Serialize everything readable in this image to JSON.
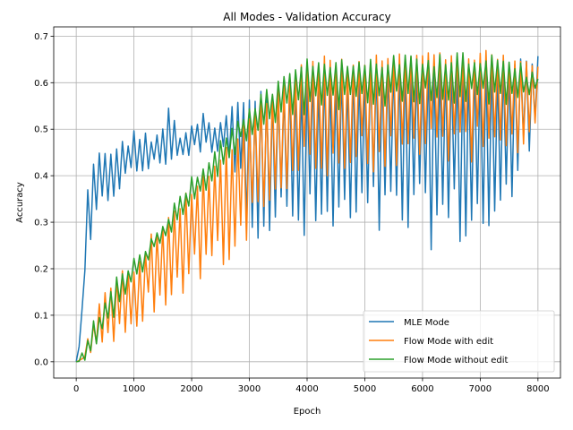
{
  "chart_data": {
    "type": "line",
    "title": "All Modes - Validation Accuracy",
    "xlabel": "Epoch",
    "ylabel": "Accuracy",
    "xlim": [
      -390,
      8390
    ],
    "ylim": [
      -0.035,
      0.72
    ],
    "xticks": [
      0,
      1000,
      2000,
      3000,
      4000,
      5000,
      6000,
      7000,
      8000
    ],
    "xtick_labels": [
      "0",
      "1000",
      "2000",
      "3000",
      "4000",
      "5000",
      "6000",
      "7000",
      "8000"
    ],
    "yticks": [
      0.0,
      0.1,
      0.2,
      0.3,
      0.4,
      0.5,
      0.6,
      0.7
    ],
    "ytick_labels": [
      "0.0",
      "0.1",
      "0.2",
      "0.3",
      "0.4",
      "0.5",
      "0.6",
      "0.7"
    ],
    "grid": true,
    "legend_position": "lower-right",
    "oscillation_period": 100,
    "series": [
      {
        "name": "MLE Mode",
        "color": "#1f77b4",
        "epochs": [
          0,
          200,
          400,
          600,
          800,
          1000,
          1200,
          1400,
          1600,
          1800,
          2000,
          2200,
          2400,
          2600,
          2800,
          3000,
          3200,
          3600,
          4000,
          4600,
          5200,
          6000,
          6800,
          7400,
          8000
        ],
        "peaks": [
          0.02,
          0.39,
          0.47,
          0.47,
          0.48,
          0.5,
          0.5,
          0.5,
          0.55,
          0.51,
          0.52,
          0.55,
          0.52,
          0.55,
          0.57,
          0.57,
          0.59,
          0.6,
          0.62,
          0.63,
          0.64,
          0.65,
          0.65,
          0.65,
          0.66
        ],
        "troughs": [
          0.0,
          0.19,
          0.3,
          0.34,
          0.37,
          0.39,
          0.4,
          0.41,
          0.42,
          0.43,
          0.44,
          0.44,
          0.45,
          0.45,
          0.36,
          0.28,
          0.26,
          0.25,
          0.23,
          0.24,
          0.25,
          0.24,
          0.24,
          0.25,
          0.52
        ]
      },
      {
        "name": "Flow Mode with edit",
        "color": "#ff7f0e",
        "epochs": [
          0,
          200,
          400,
          600,
          800,
          1000,
          1200,
          1400,
          1600,
          1800,
          2000,
          2200,
          2400,
          2600,
          2800,
          3000,
          3200,
          3600,
          4000,
          4600,
          5200,
          6000,
          6800,
          7400,
          8000
        ],
        "peaks": [
          0.0,
          0.06,
          0.13,
          0.17,
          0.2,
          0.22,
          0.26,
          0.3,
          0.33,
          0.35,
          0.38,
          0.41,
          0.44,
          0.47,
          0.5,
          0.53,
          0.57,
          0.6,
          0.66,
          0.66,
          0.66,
          0.67,
          0.67,
          0.67,
          0.65
        ],
        "troughs": [
          0.0,
          0.0,
          0.02,
          0.04,
          0.05,
          0.07,
          0.09,
          0.1,
          0.11,
          0.13,
          0.15,
          0.17,
          0.19,
          0.21,
          0.23,
          0.26,
          0.3,
          0.34,
          0.37,
          0.39,
          0.4,
          0.41,
          0.42,
          0.42,
          0.45
        ]
      },
      {
        "name": "Flow Mode without edit",
        "color": "#2ca02c",
        "epochs": [
          0,
          200,
          400,
          600,
          800,
          1000,
          1200,
          1400,
          1600,
          1800,
          2000,
          2200,
          2400,
          2600,
          2800,
          3000,
          3200,
          3600,
          4000,
          4600,
          5200,
          6000,
          6800,
          7400,
          8000
        ],
        "peaks": [
          0.0,
          0.07,
          0.12,
          0.17,
          0.2,
          0.23,
          0.26,
          0.3,
          0.33,
          0.36,
          0.4,
          0.43,
          0.46,
          0.5,
          0.53,
          0.56,
          0.58,
          0.63,
          0.66,
          0.66,
          0.66,
          0.66,
          0.67,
          0.67,
          0.62
        ],
        "troughs": [
          0.0,
          0.0,
          0.04,
          0.08,
          0.12,
          0.16,
          0.2,
          0.24,
          0.27,
          0.3,
          0.33,
          0.36,
          0.39,
          0.42,
          0.45,
          0.48,
          0.5,
          0.52,
          0.53,
          0.54,
          0.54,
          0.55,
          0.55,
          0.55,
          0.58
        ]
      }
    ]
  }
}
